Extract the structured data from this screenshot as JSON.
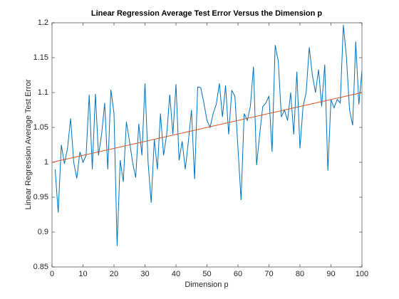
{
  "chart_data": {
    "type": "line",
    "title": "Linear Regression Average Test Error Versus the Dimension p",
    "x_label": "Dimension p",
    "y_label": "Linear Regression Average Test Error",
    "xlim": [
      0,
      100
    ],
    "xticks": [
      0,
      10,
      20,
      30,
      40,
      50,
      60,
      70,
      80,
      90,
      100
    ],
    "ylim": [
      0.85,
      1.2
    ],
    "yticks": [
      0.85,
      0.9,
      0.95,
      1,
      1.05,
      1.1,
      1.15,
      1.2
    ],
    "grid": false,
    "series": [
      {
        "color": "#0072bd",
        "x": [
          1,
          2,
          3,
          4,
          5,
          6,
          7,
          8,
          9,
          10,
          11,
          12,
          13,
          14,
          15,
          16,
          17,
          18,
          19,
          20,
          21,
          22,
          23,
          24,
          25,
          26,
          27,
          28,
          29,
          30,
          31,
          32,
          33,
          34,
          35,
          36,
          37,
          38,
          39,
          40,
          41,
          42,
          43,
          44,
          45,
          46,
          47,
          48,
          49,
          50,
          51,
          52,
          53,
          54,
          55,
          56,
          57,
          58,
          59,
          60,
          61,
          62,
          63,
          64,
          65,
          66,
          67,
          68,
          69,
          70,
          71,
          72,
          73,
          74,
          75,
          76,
          77,
          78,
          79,
          80,
          81,
          82,
          83,
          84,
          85,
          86,
          87,
          88,
          89,
          90,
          91,
          92,
          93,
          94,
          95,
          96,
          97,
          98,
          99,
          100
        ],
        "values": [
          0.99,
          0.928,
          1.025,
          0.998,
          1.02,
          1.063,
          1.0,
          0.977,
          1.015,
          1.0,
          1.01,
          1.097,
          0.99,
          1.098,
          1.01,
          1.04,
          1.085,
          0.99,
          1.104,
          1.07,
          0.88,
          1.003,
          0.972,
          1.058,
          1.03,
          1.0,
          0.978,
          1.055,
          1.01,
          1.113,
          1.0,
          0.942,
          1.033,
          0.99,
          1.07,
          1.01,
          1.04,
          1.097,
          1.04,
          1.112,
          1.003,
          1.03,
          0.99,
          1.03,
          1.075,
          0.976,
          1.108,
          1.107,
          1.085,
          1.06,
          1.05,
          1.07,
          1.083,
          1.113,
          1.065,
          1.11,
          1.04,
          1.103,
          1.095,
          1.02,
          0.946,
          1.07,
          1.06,
          1.08,
          1.137,
          0.996,
          1.04,
          1.08,
          1.085,
          1.095,
          1.015,
          1.168,
          1.145,
          1.065,
          1.075,
          1.06,
          1.1,
          1.04,
          1.13,
          1.02,
          1.08,
          1.1,
          1.165,
          1.125,
          1.1,
          1.133,
          1.08,
          1.14,
          0.988,
          1.09,
          1.078,
          1.09,
          1.085,
          1.197,
          1.15,
          1.075,
          1.053,
          1.173,
          1.083,
          1.131
        ]
      },
      {
        "color": "#d95319",
        "x": [
          0,
          100
        ],
        "values": [
          1,
          1.1
        ]
      }
    ]
  }
}
